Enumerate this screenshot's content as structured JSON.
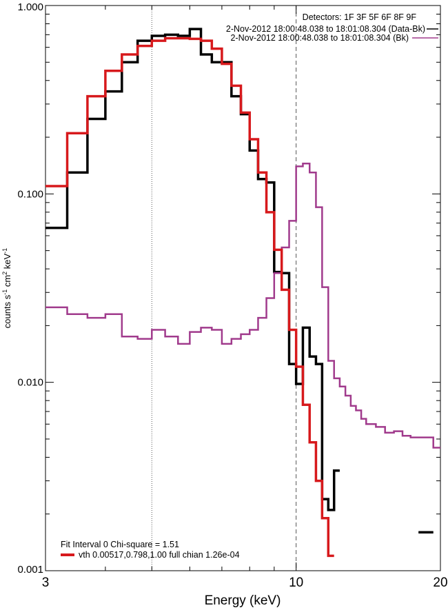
{
  "chart_data": {
    "type": "line",
    "xscale": "log",
    "yscale": "log",
    "xlim": [
      3,
      20
    ],
    "ylim": [
      0.001,
      1.0
    ],
    "xlabel": "Energy (keV)",
    "ylabel_parts": {
      "counts": "counts s",
      "s_exp": "-1",
      "cm": " cm",
      "cm_exp": "2",
      "kev": " keV",
      "kev_exp": "-1"
    },
    "x_ticks": [
      {
        "value": 3,
        "label": "3"
      },
      {
        "value": 10,
        "label": "10"
      },
      {
        "value": 20,
        "label": "20"
      }
    ],
    "y_ticks": [
      {
        "value": 0.001,
        "label": "0.001"
      },
      {
        "value": 0.01,
        "label": "0.010"
      },
      {
        "value": 0.1,
        "label": "0.100"
      },
      {
        "value": 1.0,
        "label": "1.000"
      }
    ],
    "reference_lines": [
      {
        "x": 5,
        "style": "dotted"
      },
      {
        "x": 10,
        "style": "dashed"
      }
    ],
    "legend_top": {
      "header": "Detectors: 1F 3F 5F 6F 8F 9F",
      "entries": [
        {
          "label": "2-Nov-2012 18:00:48.038 to 18:01:08.304 (Data-Bk)",
          "color": "#000000"
        },
        {
          "label": "2-Nov-2012 18:00:48.038 to 18:01:08.304 (Bk)",
          "color": "#a03a8c"
        }
      ]
    },
    "legend_bottom": {
      "header": "Fit Interval 0   Chi-square = 1.51",
      "entries": [
        {
          "label": "vth 0.00517,0.798,1.00  full chian 1.26e-04",
          "color": "#d7191c"
        }
      ]
    },
    "series": [
      {
        "name": "Data-Bk",
        "color": "#000000",
        "width": 3.5,
        "segments": [
          [
            [
              3.0,
              0.066
            ],
            [
              3.33,
              0.13
            ],
            [
              3.67,
              0.25
            ],
            [
              4.0,
              0.35
            ],
            [
              4.33,
              0.5
            ],
            [
              4.67,
              0.65
            ],
            [
              5.0,
              0.69
            ],
            [
              5.33,
              0.7
            ],
            [
              5.67,
              0.69
            ],
            [
              6.0,
              0.75
            ],
            [
              6.33,
              0.55
            ],
            [
              6.67,
              0.5
            ],
            [
              7.0,
              0.5
            ],
            [
              7.33,
              0.33
            ],
            [
              7.67,
              0.265
            ],
            [
              8.0,
              0.17
            ],
            [
              8.33,
              0.12
            ],
            [
              8.67,
              0.115
            ],
            [
              9.0,
              0.0385
            ],
            [
              9.33,
              0.038
            ],
            [
              9.67,
              0.0125
            ],
            [
              10.0,
              0.0098
            ],
            [
              10.33,
              0.0195
            ],
            [
              10.67,
              0.0137
            ],
            [
              11.0,
              0.0125
            ],
            [
              11.33,
              0.0024
            ],
            [
              11.67,
              0.0021
            ],
            [
              12.0,
              0.0034
            ],
            [
              12.33,
              0.0034
            ]
          ],
          [
            [
              18.0,
              0.0016
            ],
            [
              18.67,
              0.0016
            ],
            [
              19.33,
              0.0009
            ]
          ]
        ]
      },
      {
        "name": "Bk",
        "color": "#a03a8c",
        "width": 2.5,
        "segments": [
          [
            [
              3.0,
              0.025
            ],
            [
              3.33,
              0.023
            ],
            [
              3.67,
              0.022
            ],
            [
              4.0,
              0.023
            ],
            [
              4.33,
              0.0175
            ],
            [
              4.67,
              0.017
            ],
            [
              5.0,
              0.019
            ],
            [
              5.33,
              0.0175
            ],
            [
              5.67,
              0.016
            ],
            [
              6.0,
              0.0185
            ],
            [
              6.33,
              0.0195
            ],
            [
              6.67,
              0.019
            ],
            [
              7.0,
              0.016
            ],
            [
              7.33,
              0.017
            ],
            [
              7.67,
              0.018
            ],
            [
              8.0,
              0.019
            ],
            [
              8.33,
              0.022
            ],
            [
              8.67,
              0.028
            ],
            [
              9.0,
              0.038
            ],
            [
              9.33,
              0.052
            ],
            [
              9.67,
              0.072
            ],
            [
              10.0,
              0.14
            ],
            [
              10.33,
              0.145
            ],
            [
              10.67,
              0.13
            ],
            [
              11.0,
              0.085
            ],
            [
              11.33,
              0.032
            ],
            [
              11.67,
              0.013
            ],
            [
              12.0,
              0.0105
            ],
            [
              12.33,
              0.0095
            ],
            [
              12.67,
              0.0085
            ],
            [
              13.0,
              0.0075
            ],
            [
              13.33,
              0.0071
            ],
            [
              13.67,
              0.0064
            ],
            [
              14.0,
              0.006
            ],
            [
              14.67,
              0.0058
            ],
            [
              15.33,
              0.0054
            ],
            [
              16.0,
              0.0055
            ],
            [
              16.67,
              0.0052
            ],
            [
              17.33,
              0.0051
            ],
            [
              18.0,
              0.0051
            ],
            [
              18.67,
              0.0051
            ],
            [
              19.33,
              0.0045
            ],
            [
              20.0,
              0.0045
            ]
          ]
        ]
      },
      {
        "name": "vth fit",
        "color": "#d7191c",
        "width": 3.5,
        "segments": [
          [
            [
              3.0,
              0.11
            ],
            [
              3.33,
              0.21
            ],
            [
              3.67,
              0.33
            ],
            [
              4.0,
              0.45
            ],
            [
              4.33,
              0.55
            ],
            [
              4.67,
              0.61
            ],
            [
              5.0,
              0.65
            ],
            [
              5.33,
              0.67
            ],
            [
              5.67,
              0.67
            ],
            [
              6.0,
              0.665
            ],
            [
              6.33,
              0.65
            ],
            [
              6.67,
              0.59
            ],
            [
              7.0,
              0.49
            ],
            [
              7.33,
              0.375
            ],
            [
              7.67,
              0.27
            ],
            [
              8.0,
              0.195
            ],
            [
              8.33,
              0.13
            ],
            [
              8.67,
              0.08
            ],
            [
              9.0,
              0.0505
            ],
            [
              9.33,
              0.031
            ],
            [
              9.67,
              0.019
            ],
            [
              10.0,
              0.0121
            ],
            [
              10.33,
              0.0076
            ],
            [
              10.67,
              0.0048
            ],
            [
              11.0,
              0.003
            ],
            [
              11.33,
              0.0019
            ],
            [
              11.67,
              0.0012
            ],
            [
              12.0,
              0.00075
            ]
          ]
        ]
      }
    ]
  }
}
